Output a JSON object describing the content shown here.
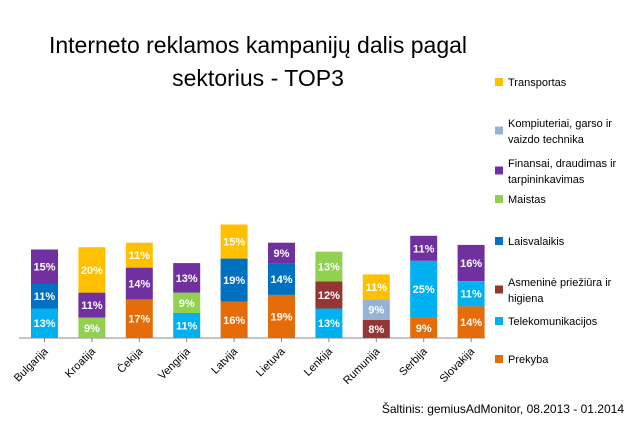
{
  "chart_data": {
    "type": "bar",
    "stacked": true,
    "title_lines": [
      "Interneto reklamos kampanijų dalis pagal",
      "sektorius - TOP3"
    ],
    "source": "Šaltinis: gemiusAdMonitor, 08.2013 - 01.2014",
    "categories": [
      "Bulgarija",
      "Kroatija",
      "Čekija",
      "Vengrija",
      "Latvija",
      "Lietuva",
      "Lenkija",
      "Rumunija",
      "Serbija",
      "Slovakija"
    ],
    "legend_position": "right",
    "grid": false,
    "value_unit": "%",
    "series": [
      {
        "name": "Prekyba",
        "color": "#E46C0A",
        "values": [
          null,
          null,
          17,
          null,
          16,
          19,
          null,
          null,
          9,
          14
        ]
      },
      {
        "name": "Telekomunikacijos",
        "color": "#00B0F0",
        "values": [
          13,
          null,
          null,
          11,
          null,
          null,
          13,
          null,
          25,
          11
        ]
      },
      {
        "name": "Asmeninė priežiūra ir higiena",
        "color": "#943634",
        "values": [
          null,
          null,
          null,
          null,
          null,
          null,
          12,
          8,
          null,
          null
        ]
      },
      {
        "name": "Laisvalaikis",
        "color": "#0070C0",
        "values": [
          11,
          null,
          null,
          null,
          19,
          14,
          null,
          null,
          null,
          null
        ]
      },
      {
        "name": "Maistas",
        "color": "#92D050",
        "values": [
          null,
          9,
          null,
          9,
          null,
          null,
          13,
          null,
          null,
          null
        ]
      },
      {
        "name": "Finansai, draudimas ir tarpininkavimas",
        "color": "#7030A0",
        "values": [
          15,
          11,
          14,
          13,
          null,
          9,
          null,
          null,
          11,
          16
        ]
      },
      {
        "name": "Kompiuteriai, garso ir vaizdo technika",
        "color": "#95B3D7",
        "values": [
          null,
          null,
          null,
          null,
          null,
          null,
          null,
          9,
          null,
          null
        ]
      },
      {
        "name": "Transportas",
        "color": "#FFC000",
        "values": [
          null,
          20,
          11,
          null,
          15,
          null,
          null,
          11,
          null,
          null
        ]
      }
    ],
    "legend_order": [
      "Transportas",
      "Kompiuteriai, garso ir vaizdo technika",
      "Finansai, draudimas ir tarpininkavimas",
      "Maistas",
      "Laisvalaikis",
      "Asmeninė priežiūra ir higiena",
      "Telekomunikacijos",
      "Prekyba"
    ],
    "legend_lines": {
      "Transportas": [
        "Transportas"
      ],
      "Kompiuteriai, garso ir vaizdo technika": [
        "Kompiuteriai, garso ir",
        "vaizdo technika"
      ],
      "Finansai, draudimas ir tarpininkavimas": [
        "Finansai, draudimas ir",
        "tarpininkavimas"
      ],
      "Maistas": [
        "Maistas"
      ],
      "Laisvalaikis": [
        "Laisvalaikis"
      ],
      "Asmeninė priežiūra ir higiena": [
        "Asmeninė priežiūra ir",
        "higiena"
      ],
      "Telekomunikacijos": [
        "Telekomunikacijos"
      ],
      "Prekyba": [
        "Prekyba"
      ]
    }
  }
}
